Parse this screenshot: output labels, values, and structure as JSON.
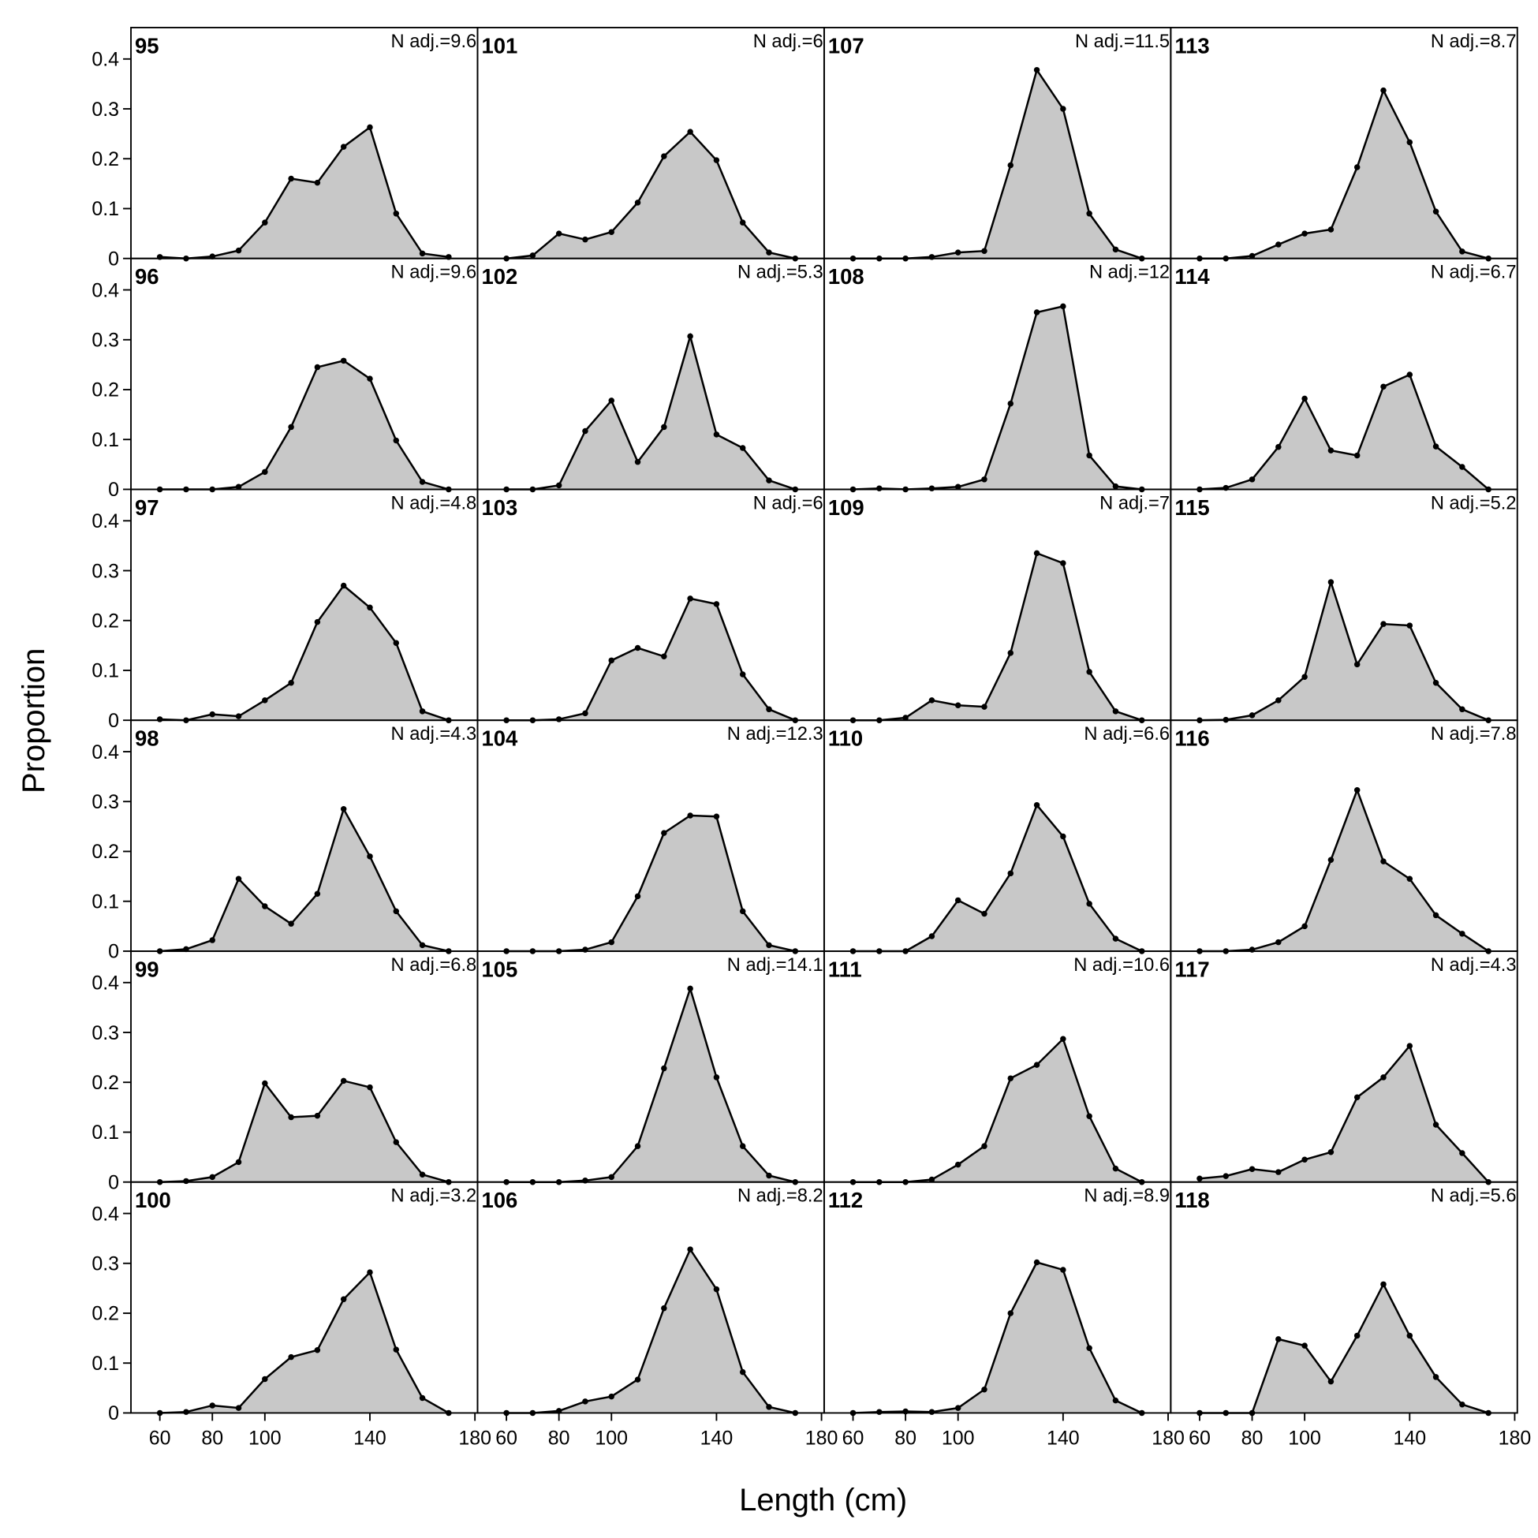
{
  "xlabel": "Length (cm)",
  "ylabel": "Proportion",
  "chart_data": [
    {
      "type": "area",
      "title": "95",
      "annotation": "N adj.=9.6",
      "x": [
        60,
        70,
        80,
        90,
        100,
        110,
        120,
        130,
        140,
        150,
        160,
        170
      ],
      "values": [
        0.003,
        0,
        0.004,
        0.016,
        0.072,
        0.16,
        0.152,
        0.224,
        0.263,
        0.09,
        0.01,
        0.003
      ],
      "color": "#c8c8c8",
      "xlim": [
        49,
        181
      ],
      "ylim": [
        0,
        0.463
      ],
      "yticks": [
        0,
        0.1,
        0.2,
        0.3,
        0.4
      ]
    },
    {
      "type": "area",
      "title": "96",
      "annotation": "N adj.=9.6",
      "x": [
        60,
        70,
        80,
        90,
        100,
        110,
        120,
        130,
        140,
        150,
        160,
        170
      ],
      "values": [
        0,
        0,
        0,
        0.005,
        0.035,
        0.125,
        0.245,
        0.258,
        0.222,
        0.098,
        0.015,
        0
      ],
      "color": "#c8c8c8",
      "xlim": [
        49,
        181
      ],
      "ylim": [
        0,
        0.463
      ],
      "yticks": [
        0,
        0.1,
        0.2,
        0.3,
        0.4
      ]
    },
    {
      "type": "area",
      "title": "97",
      "annotation": "N adj.=4.8",
      "x": [
        60,
        70,
        80,
        90,
        100,
        110,
        120,
        130,
        140,
        150,
        160,
        170
      ],
      "values": [
        0.002,
        0,
        0.012,
        0.008,
        0.04,
        0.075,
        0.197,
        0.27,
        0.226,
        0.155,
        0.018,
        0
      ],
      "color": "#c8c8c8",
      "xlim": [
        49,
        181
      ],
      "ylim": [
        0,
        0.463
      ],
      "yticks": [
        0,
        0.1,
        0.2,
        0.3,
        0.4
      ]
    },
    {
      "type": "area",
      "title": "98",
      "annotation": "N adj.=4.3",
      "x": [
        60,
        70,
        80,
        90,
        100,
        110,
        120,
        130,
        140,
        150,
        160,
        170
      ],
      "values": [
        0,
        0.004,
        0.022,
        0.145,
        0.09,
        0.055,
        0.115,
        0.285,
        0.19,
        0.08,
        0.012,
        0
      ],
      "color": "#c8c8c8",
      "xlim": [
        49,
        181
      ],
      "ylim": [
        0,
        0.463
      ],
      "yticks": [
        0,
        0.1,
        0.2,
        0.3,
        0.4
      ]
    },
    {
      "type": "area",
      "title": "99",
      "annotation": "N adj.=6.8",
      "x": [
        60,
        70,
        80,
        90,
        100,
        110,
        120,
        130,
        140,
        150,
        160,
        170
      ],
      "values": [
        0,
        0.002,
        0.01,
        0.04,
        0.198,
        0.13,
        0.133,
        0.203,
        0.19,
        0.08,
        0.015,
        0
      ],
      "color": "#c8c8c8",
      "xlim": [
        49,
        181
      ],
      "ylim": [
        0,
        0.463
      ],
      "yticks": [
        0,
        0.1,
        0.2,
        0.3,
        0.4
      ]
    },
    {
      "type": "area",
      "title": "100",
      "annotation": "N adj.=3.2",
      "x": [
        60,
        70,
        80,
        90,
        100,
        110,
        120,
        130,
        140,
        150,
        160,
        170
      ],
      "values": [
        0,
        0.002,
        0.015,
        0.01,
        0.068,
        0.112,
        0.126,
        0.228,
        0.282,
        0.127,
        0.03,
        0
      ],
      "color": "#c8c8c8",
      "xlim": [
        49,
        181
      ],
      "ylim": [
        0,
        0.463
      ],
      "yticks": [
        0,
        0.1,
        0.2,
        0.3,
        0.4
      ],
      "xticks": [
        60,
        80,
        100,
        140,
        180
      ]
    },
    {
      "type": "area",
      "title": "101",
      "annotation": "N adj.=6",
      "x": [
        60,
        70,
        80,
        90,
        100,
        110,
        120,
        130,
        140,
        150,
        160,
        170
      ],
      "values": [
        0,
        0.006,
        0.05,
        0.038,
        0.053,
        0.112,
        0.205,
        0.254,
        0.197,
        0.072,
        0.012,
        0
      ],
      "color": "#c8c8c8",
      "xlim": [
        49,
        181
      ],
      "ylim": [
        0,
        0.463
      ]
    },
    {
      "type": "area",
      "title": "102",
      "annotation": "N adj.=5.3",
      "x": [
        60,
        70,
        80,
        90,
        100,
        110,
        120,
        130,
        140,
        150,
        160,
        170
      ],
      "values": [
        0,
        0,
        0.008,
        0.117,
        0.178,
        0.055,
        0.125,
        0.307,
        0.11,
        0.083,
        0.018,
        0
      ],
      "color": "#c8c8c8",
      "xlim": [
        49,
        181
      ],
      "ylim": [
        0,
        0.463
      ]
    },
    {
      "type": "area",
      "title": "103",
      "annotation": "N adj.=6",
      "x": [
        60,
        70,
        80,
        90,
        100,
        110,
        120,
        130,
        140,
        150,
        160,
        170
      ],
      "values": [
        0,
        0,
        0.002,
        0.014,
        0.12,
        0.145,
        0.128,
        0.244,
        0.233,
        0.092,
        0.022,
        0
      ],
      "color": "#c8c8c8",
      "xlim": [
        49,
        181
      ],
      "ylim": [
        0,
        0.463
      ]
    },
    {
      "type": "area",
      "title": "104",
      "annotation": "N adj.=12.3",
      "x": [
        60,
        70,
        80,
        90,
        100,
        110,
        120,
        130,
        140,
        150,
        160,
        170
      ],
      "values": [
        0,
        0,
        0,
        0.003,
        0.018,
        0.11,
        0.237,
        0.272,
        0.27,
        0.08,
        0.012,
        0
      ],
      "color": "#c8c8c8",
      "xlim": [
        49,
        181
      ],
      "ylim": [
        0,
        0.463
      ]
    },
    {
      "type": "area",
      "title": "105",
      "annotation": "N adj.=14.1",
      "x": [
        60,
        70,
        80,
        90,
        100,
        110,
        120,
        130,
        140,
        150,
        160,
        170
      ],
      "values": [
        0,
        0,
        0,
        0.003,
        0.01,
        0.072,
        0.228,
        0.388,
        0.21,
        0.072,
        0.013,
        0
      ],
      "color": "#c8c8c8",
      "xlim": [
        49,
        181
      ],
      "ylim": [
        0,
        0.463
      ]
    },
    {
      "type": "area",
      "title": "106",
      "annotation": "N adj.=8.2",
      "x": [
        60,
        70,
        80,
        90,
        100,
        110,
        120,
        130,
        140,
        150,
        160,
        170
      ],
      "values": [
        0,
        0,
        0.004,
        0.023,
        0.033,
        0.067,
        0.21,
        0.328,
        0.248,
        0.082,
        0.012,
        0
      ],
      "color": "#c8c8c8",
      "xlim": [
        49,
        181
      ],
      "ylim": [
        0,
        0.463
      ],
      "xticks": [
        60,
        80,
        100,
        140,
        180
      ]
    },
    {
      "type": "area",
      "title": "107",
      "annotation": "N adj.=11.5",
      "x": [
        60,
        70,
        80,
        90,
        100,
        110,
        120,
        130,
        140,
        150,
        160,
        170
      ],
      "values": [
        0,
        0,
        0,
        0.003,
        0.012,
        0.015,
        0.187,
        0.378,
        0.3,
        0.09,
        0.018,
        0
      ],
      "color": "#c8c8c8",
      "xlim": [
        49,
        181
      ],
      "ylim": [
        0,
        0.463
      ]
    },
    {
      "type": "area",
      "title": "108",
      "annotation": "N adj.=12",
      "x": [
        60,
        70,
        80,
        90,
        100,
        110,
        120,
        130,
        140,
        150,
        160,
        170
      ],
      "values": [
        0,
        0.002,
        0,
        0.002,
        0.005,
        0.02,
        0.172,
        0.355,
        0.367,
        0.068,
        0.006,
        0
      ],
      "color": "#c8c8c8",
      "xlim": [
        49,
        181
      ],
      "ylim": [
        0,
        0.463
      ]
    },
    {
      "type": "area",
      "title": "109",
      "annotation": "N adj.=7",
      "x": [
        60,
        70,
        80,
        90,
        100,
        110,
        120,
        130,
        140,
        150,
        160,
        170
      ],
      "values": [
        0,
        0,
        0.005,
        0.04,
        0.03,
        0.027,
        0.135,
        0.335,
        0.315,
        0.097,
        0.018,
        0
      ],
      "color": "#c8c8c8",
      "xlim": [
        49,
        181
      ],
      "ylim": [
        0,
        0.463
      ]
    },
    {
      "type": "area",
      "title": "110",
      "annotation": "N adj.=6.6",
      "x": [
        60,
        70,
        80,
        90,
        100,
        110,
        120,
        130,
        140,
        150,
        160,
        170
      ],
      "values": [
        0,
        0,
        0,
        0.03,
        0.102,
        0.075,
        0.156,
        0.293,
        0.23,
        0.095,
        0.025,
        0
      ],
      "color": "#c8c8c8",
      "xlim": [
        49,
        181
      ],
      "ylim": [
        0,
        0.463
      ]
    },
    {
      "type": "area",
      "title": "111",
      "annotation": "N adj.=10.6",
      "x": [
        60,
        70,
        80,
        90,
        100,
        110,
        120,
        130,
        140,
        150,
        160,
        170
      ],
      "values": [
        0,
        0,
        0,
        0.005,
        0.035,
        0.072,
        0.208,
        0.235,
        0.287,
        0.132,
        0.027,
        0
      ],
      "color": "#c8c8c8",
      "xlim": [
        49,
        181
      ],
      "ylim": [
        0,
        0.463
      ]
    },
    {
      "type": "area",
      "title": "112",
      "annotation": "N adj.=8.9",
      "x": [
        60,
        70,
        80,
        90,
        100,
        110,
        120,
        130,
        140,
        150,
        160,
        170
      ],
      "values": [
        0,
        0.002,
        0.003,
        0.002,
        0.01,
        0.047,
        0.2,
        0.302,
        0.287,
        0.13,
        0.025,
        0
      ],
      "color": "#c8c8c8",
      "xlim": [
        49,
        181
      ],
      "ylim": [
        0,
        0.463
      ],
      "xticks": [
        60,
        80,
        100,
        140,
        180
      ]
    },
    {
      "type": "area",
      "title": "113",
      "annotation": "N adj.=8.7",
      "x": [
        60,
        70,
        80,
        90,
        100,
        110,
        120,
        130,
        140,
        150,
        160,
        170
      ],
      "values": [
        0,
        0,
        0.005,
        0.028,
        0.05,
        0.058,
        0.183,
        0.337,
        0.233,
        0.094,
        0.014,
        0
      ],
      "color": "#c8c8c8",
      "xlim": [
        49,
        181
      ],
      "ylim": [
        0,
        0.463
      ]
    },
    {
      "type": "area",
      "title": "114",
      "annotation": "N adj.=6.7",
      "x": [
        60,
        70,
        80,
        90,
        100,
        110,
        120,
        130,
        140,
        150,
        160,
        170
      ],
      "values": [
        0,
        0.003,
        0.02,
        0.085,
        0.182,
        0.078,
        0.068,
        0.206,
        0.23,
        0.086,
        0.045,
        0
      ],
      "color": "#c8c8c8",
      "xlim": [
        49,
        181
      ],
      "ylim": [
        0,
        0.463
      ]
    },
    {
      "type": "area",
      "title": "115",
      "annotation": "N adj.=5.2",
      "x": [
        60,
        70,
        80,
        90,
        100,
        110,
        120,
        130,
        140,
        150,
        160,
        170
      ],
      "values": [
        0,
        0.001,
        0.01,
        0.04,
        0.087,
        0.277,
        0.112,
        0.193,
        0.19,
        0.075,
        0.022,
        0
      ],
      "color": "#c8c8c8",
      "xlim": [
        49,
        181
      ],
      "ylim": [
        0,
        0.463
      ]
    },
    {
      "type": "area",
      "title": "116",
      "annotation": "N adj.=7.8",
      "x": [
        60,
        70,
        80,
        90,
        100,
        110,
        120,
        130,
        140,
        150,
        160,
        170
      ],
      "values": [
        0,
        0,
        0.003,
        0.018,
        0.05,
        0.183,
        0.323,
        0.18,
        0.145,
        0.072,
        0.035,
        0
      ],
      "color": "#c8c8c8",
      "xlim": [
        49,
        181
      ],
      "ylim": [
        0,
        0.463
      ]
    },
    {
      "type": "area",
      "title": "117",
      "annotation": "N adj.=4.3",
      "x": [
        60,
        70,
        80,
        90,
        100,
        110,
        120,
        130,
        140,
        150,
        160,
        170
      ],
      "values": [
        0.007,
        0.012,
        0.026,
        0.02,
        0.045,
        0.06,
        0.17,
        0.21,
        0.273,
        0.115,
        0.058,
        0
      ],
      "color": "#c8c8c8",
      "xlim": [
        49,
        181
      ],
      "ylim": [
        0,
        0.463
      ]
    },
    {
      "type": "area",
      "title": "118",
      "annotation": "N adj.=5.6",
      "x": [
        60,
        70,
        80,
        90,
        100,
        110,
        120,
        130,
        140,
        150,
        160,
        170
      ],
      "values": [
        0,
        0,
        0,
        0.148,
        0.135,
        0.063,
        0.155,
        0.258,
        0.155,
        0.072,
        0.017,
        0
      ],
      "color": "#c8c8c8",
      "xlim": [
        49,
        181
      ],
      "ylim": [
        0,
        0.463
      ],
      "xticks": [
        60,
        80,
        100,
        140,
        180
      ]
    }
  ]
}
